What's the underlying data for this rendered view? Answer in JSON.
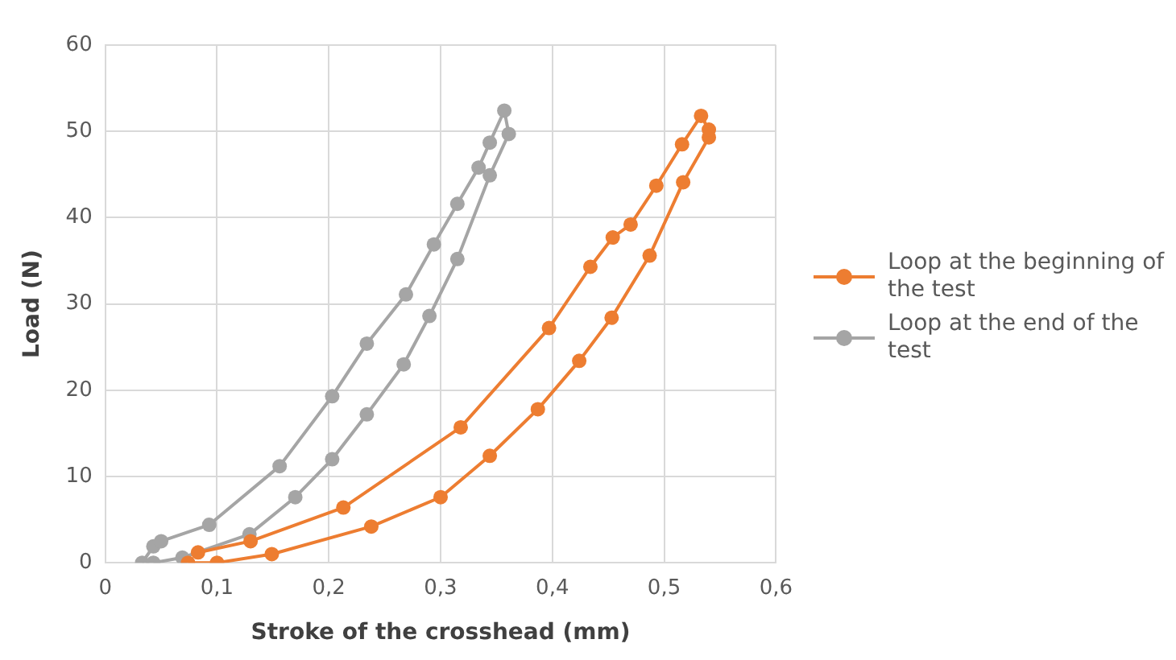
{
  "chart_data": {
    "type": "line",
    "xlabel": "Stroke of the crosshead (mm)",
    "ylabel": "Load (N)",
    "xlim": [
      0,
      0.6
    ],
    "xticks": [
      0,
      {
        "value": 0.1,
        "label": "0,1"
      },
      {
        "value": 0.2,
        "label": "0,2"
      },
      {
        "value": 0.3,
        "label": "0,3"
      },
      {
        "value": 0.4,
        "label": "0,4"
      },
      {
        "value": 0.5,
        "label": "0,5"
      },
      {
        "value": 0.6,
        "label": "0,6"
      }
    ],
    "ylim": [
      0,
      60
    ],
    "yticks": [
      0,
      10,
      20,
      30,
      40,
      50,
      60
    ],
    "grid": true,
    "legend": "right",
    "marker": "circle",
    "line_style": "solid",
    "series": [
      {
        "name": "Loop at the beginning of the test",
        "color": "#ed7d31",
        "x": [
          0.074,
          0.1,
          0.149,
          0.238,
          0.3,
          0.344,
          0.387,
          0.424,
          0.453,
          0.487,
          0.517,
          0.54,
          0.54,
          0.533,
          0.516,
          0.493,
          0.47,
          0.454,
          0.434,
          0.397,
          0.318,
          0.213,
          0.13,
          0.083
        ],
        "values": [
          0,
          0,
          1,
          4.2,
          7.6,
          12.4,
          17.8,
          23.4,
          28.4,
          35.6,
          44.1,
          49.3,
          50.2,
          51.8,
          48.5,
          43.7,
          39.2,
          37.7,
          34.3,
          27.2,
          15.7,
          6.4,
          2.5,
          1.2
        ]
      },
      {
        "name": "Loop at the end of the test",
        "color": "#a5a5a5",
        "x": [
          0.033,
          0.043,
          0.05,
          0.093,
          0.156,
          0.203,
          0.234,
          0.269,
          0.294,
          0.315,
          0.334,
          0.344,
          0.357,
          0.361,
          0.344,
          0.315,
          0.29,
          0.267,
          0.234,
          0.203,
          0.17,
          0.129,
          0.069,
          0.043
        ],
        "values": [
          0,
          1.9,
          2.5,
          4.4,
          11.2,
          19.3,
          25.4,
          31.1,
          36.9,
          41.6,
          45.8,
          48.7,
          52.4,
          49.7,
          44.9,
          35.2,
          28.6,
          23,
          17.2,
          12,
          7.6,
          3.3,
          0.6,
          0
        ]
      }
    ]
  }
}
